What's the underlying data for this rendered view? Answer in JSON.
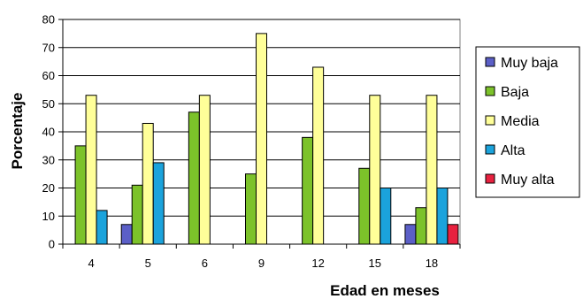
{
  "chart_data": {
    "type": "bar",
    "xlabel": "Edad en meses",
    "ylabel": "Porcentaje",
    "categories": [
      "4",
      "5",
      "6",
      "9",
      "12",
      "15",
      "18"
    ],
    "ylim": [
      0,
      80
    ],
    "yticks": [
      0,
      10,
      20,
      30,
      40,
      50,
      60,
      70,
      80
    ],
    "grid": true,
    "legend_position": "right",
    "series": [
      {
        "name": "Muy baja",
        "color": "#5b5fc7",
        "values": [
          0,
          7,
          0,
          0,
          0,
          0,
          7
        ]
      },
      {
        "name": "Baja",
        "color": "#7cc22a",
        "values": [
          35,
          21,
          47,
          25,
          38,
          27,
          13
        ]
      },
      {
        "name": "Media",
        "color": "#ffff99",
        "values": [
          53,
          43,
          53,
          75,
          63,
          53,
          53
        ]
      },
      {
        "name": "Alta",
        "color": "#1ba3dc",
        "values": [
          12,
          29,
          0,
          0,
          0,
          20,
          20
        ]
      },
      {
        "name": "Muy alta",
        "color": "#e8213f",
        "values": [
          0,
          0,
          0,
          0,
          0,
          0,
          7
        ]
      }
    ]
  }
}
